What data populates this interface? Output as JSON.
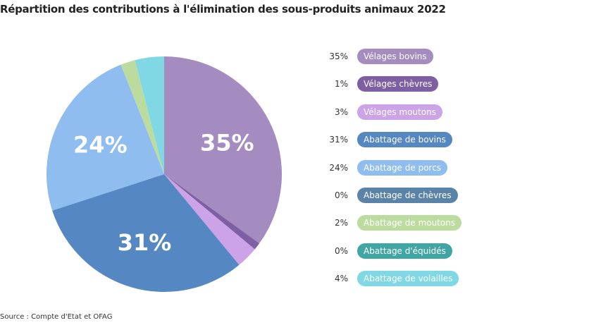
{
  "title": "Répartition des contributions à l'élimination des sous-produits animaux 2022",
  "source": "Source : Compte d'Etat et OFAG",
  "chart_data": {
    "type": "pie",
    "title": "Répartition des contributions à l'élimination des sous-produits animaux 2022",
    "legend_position": "right",
    "slices": [
      {
        "name": "Vélages bovins",
        "value": 35,
        "label": "35%",
        "color": "#a58cc0"
      },
      {
        "name": "Vélages chèvres",
        "value": 1,
        "label": "1%",
        "color": "#7f5fa3"
      },
      {
        "name": "Vélages moutons",
        "value": 3,
        "label": "3%",
        "color": "#cca3e6"
      },
      {
        "name": "Abattage de bovins",
        "value": 31,
        "label": "31%",
        "color": "#5587c2"
      },
      {
        "name": "Abattage de porcs",
        "value": 24,
        "label": "24%",
        "color": "#8fbdf0"
      },
      {
        "name": "Abattage de chèvres",
        "value": 0,
        "label": "0%",
        "color": "#5b83a8"
      },
      {
        "name": "Abattage de moutons",
        "value": 2,
        "label": "2%",
        "color": "#bcdb9f"
      },
      {
        "name": "Abattage d'équidés",
        "value": 0,
        "label": "0%",
        "color": "#40a6a3"
      },
      {
        "name": "Abattage de volailles",
        "value": 4,
        "label": "4%",
        "color": "#7fd8e3"
      }
    ]
  }
}
